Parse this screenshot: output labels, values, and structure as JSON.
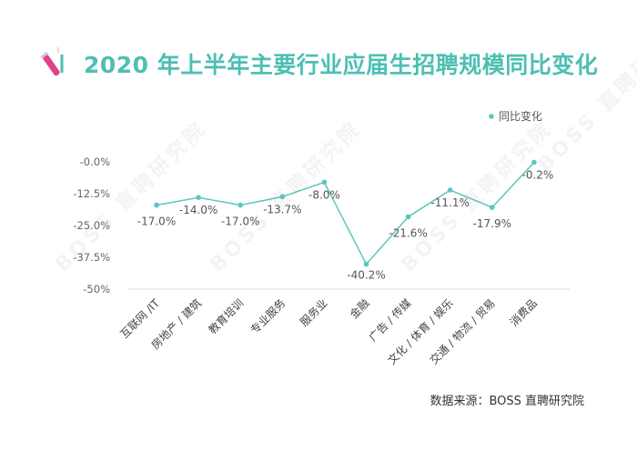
{
  "title": "2020 年上半年主要行业应届生招聘规模同比变化",
  "source": "数据来源：BOSS 直聘研究院",
  "watermark": "BOSS 直聘研究院",
  "colors": {
    "line": "#5cc6be",
    "title": "#4dbfb4",
    "icon": "#e0418a"
  },
  "chart_data": {
    "type": "line",
    "title": "2020 年上半年主要行业应届生招聘规模同比变化",
    "categories": [
      "互联网 /IT",
      "房地产 / 建筑",
      "教育培训",
      "专业服务",
      "服务业",
      "金融",
      "广告 / 传媒",
      "文化 / 体育 / 娱乐",
      "交通 / 物流 / 贸易",
      "消费品"
    ],
    "series": [
      {
        "name": "同比变化",
        "values": [
          -17.0,
          -14.0,
          -17.0,
          -13.7,
          -8.0,
          -40.2,
          -21.6,
          -11.1,
          -17.9,
          -0.2
        ]
      }
    ],
    "data_labels": [
      "-17.0%",
      "-14.0%",
      "-17.0%",
      "-13.7%",
      "-8.0%",
      "-40.2%",
      "-21.6%",
      "-11.1%",
      "-17.9%",
      "-0.2%"
    ],
    "yticks": [
      "-0.0%",
      "-12.5%",
      "-25.0%",
      "-37.5%",
      "-50%"
    ],
    "ylim": [
      -50,
      0
    ],
    "grid": false,
    "legend": "top-right"
  }
}
